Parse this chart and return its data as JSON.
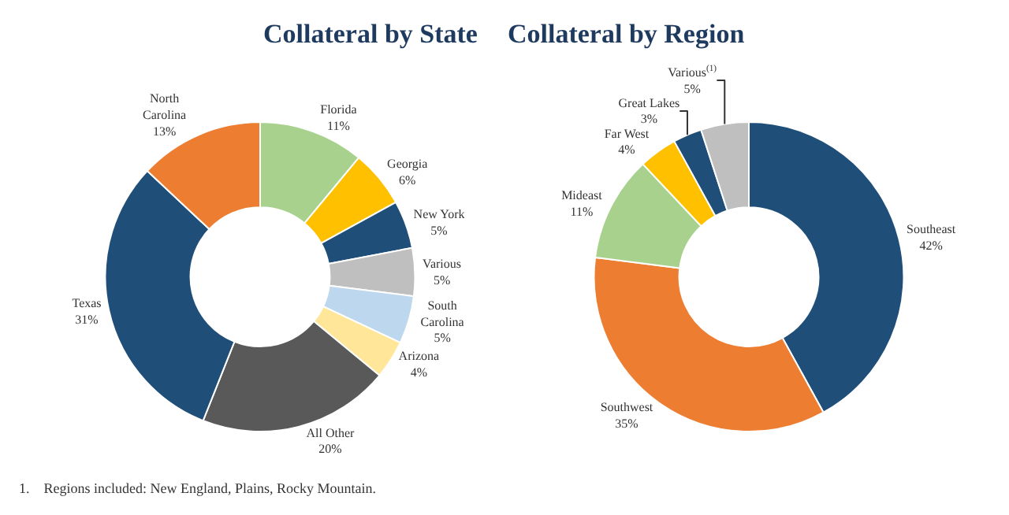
{
  "chart_data": [
    {
      "type": "donut",
      "title": "Collateral by State",
      "categories": [
        "Florida",
        "Georgia",
        "New York",
        "Various",
        "South Carolina",
        "Arizona",
        "All Other",
        "Texas",
        "North Carolina"
      ],
      "values": [
        11,
        6,
        5,
        5,
        5,
        4,
        20,
        31,
        13
      ],
      "value_labels": [
        "11%",
        "6%",
        "5%",
        "5%",
        "5%",
        "4%",
        "20%",
        "31%",
        "13%"
      ],
      "colors": [
        "#a9d18e",
        "#ffc000",
        "#1f4e79",
        "#bfbfbf",
        "#bdd7ee",
        "#ffe699",
        "#595959",
        "#1f4e79",
        "#ed7d31"
      ],
      "legend": false
    },
    {
      "type": "donut",
      "title": "Collateral by Region",
      "categories": [
        "Southeast",
        "Southwest",
        "Mideast",
        "Far West",
        "Great Lakes",
        "Various$^{(1)}$"
      ],
      "values": [
        42,
        35,
        11,
        4,
        3,
        5
      ],
      "value_labels": [
        "42%",
        "35%",
        "11%",
        "4%",
        "3%",
        "5%"
      ],
      "colors": [
        "#1f4e79",
        "#ed7d31",
        "#a9d18e",
        "#ffc000",
        "#1f4e79",
        "#bfbfbf"
      ],
      "legend": false,
      "annotations": [
        "1.    Regions included: New England, Plains, Rocky Mountain."
      ]
    }
  ]
}
